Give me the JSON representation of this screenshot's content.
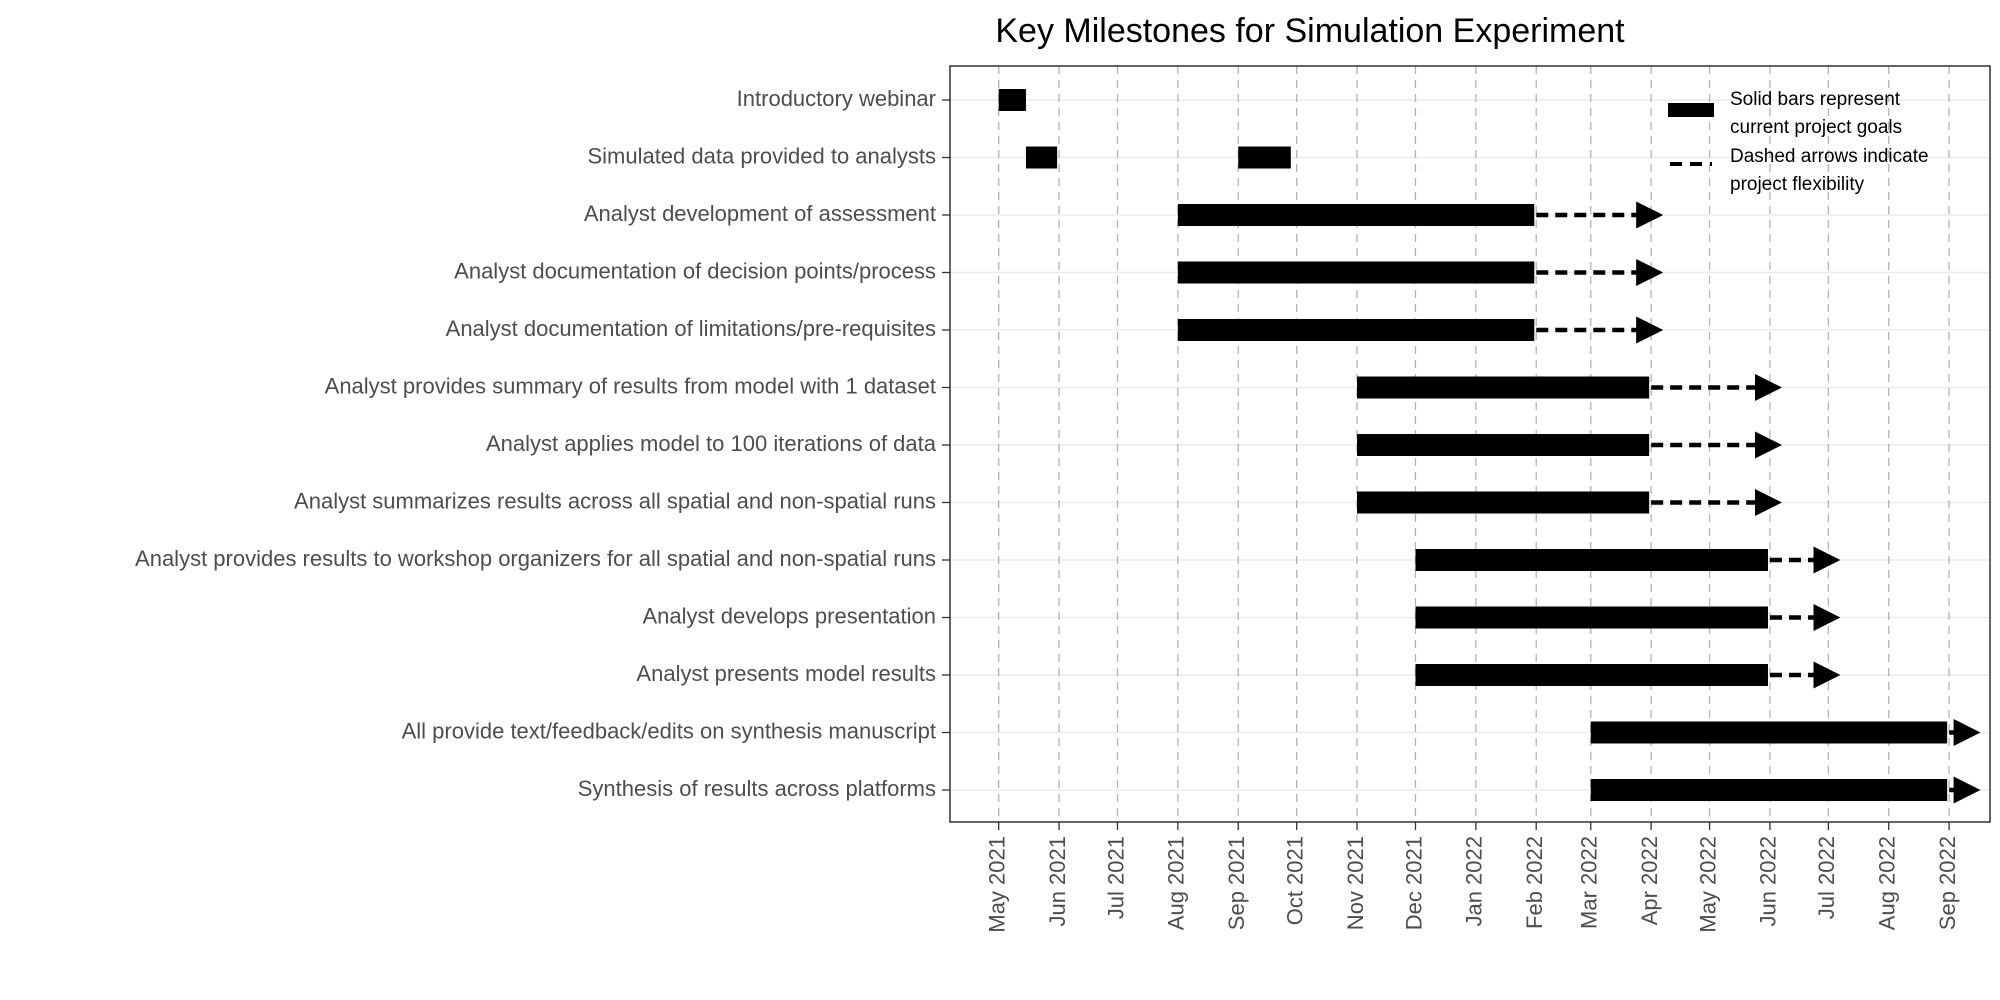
{
  "chart_data": {
    "type": "gantt",
    "title": "Key Milestones for Simulation Experiment",
    "xlabel": "",
    "ylabel": "",
    "x_axis": {
      "type": "date",
      "range": [
        "2021-04-06",
        "2022-09-22"
      ],
      "ticks": [
        "2021-05-01",
        "2021-06-01",
        "2021-07-01",
        "2021-08-01",
        "2021-09-01",
        "2021-10-01",
        "2021-11-01",
        "2021-12-01",
        "2022-01-01",
        "2022-02-01",
        "2022-03-01",
        "2022-04-01",
        "2022-05-01",
        "2022-06-01",
        "2022-07-01",
        "2022-08-01",
        "2022-09-01"
      ],
      "tick_labels": [
        "May 2021",
        "Jun 2021",
        "Jul 2021",
        "Aug 2021",
        "Sep 2021",
        "Oct 2021",
        "Nov 2021",
        "Dec 2021",
        "Jan 2022",
        "Feb 2022",
        "Mar 2022",
        "Apr 2022",
        "May 2022",
        "Jun 2022",
        "Jul 2022",
        "Aug 2022",
        "Sep 2022"
      ],
      "tick_label_rotation": "vertical"
    },
    "grid": {
      "vertical": "dashed",
      "horizontal": "solid-light"
    },
    "legend": {
      "placement": "top-right",
      "entries": [
        {
          "symbol": "solid-bar",
          "label": "Solid bars represent current project goals"
        },
        {
          "symbol": "dashed-arrow",
          "label": "Dashed arrows indicate project flexibility"
        }
      ]
    },
    "series": [
      {
        "task": "Introductory webinar",
        "segments": [
          {
            "start": "2021-05-01",
            "end": "2021-05-15"
          }
        ],
        "flex_end": null
      },
      {
        "task": "Simulated data provided to analysts",
        "segments": [
          {
            "start": "2021-05-15",
            "end": "2021-05-31"
          },
          {
            "start": "2021-09-01",
            "end": "2021-09-28"
          }
        ],
        "flex_end": null
      },
      {
        "task": "Analyst development of assessment",
        "segments": [
          {
            "start": "2021-08-01",
            "end": "2022-01-31"
          }
        ],
        "flex_end": "2022-04-10"
      },
      {
        "task": "Analyst documentation of decision points/process",
        "segments": [
          {
            "start": "2021-08-01",
            "end": "2022-01-31"
          }
        ],
        "flex_end": "2022-04-10"
      },
      {
        "task": "Analyst documentation of limitations/pre-requisites",
        "segments": [
          {
            "start": "2021-08-01",
            "end": "2022-01-31"
          }
        ],
        "flex_end": "2022-04-10"
      },
      {
        "task": "Analyst provides summary of results from model with 1 dataset",
        "segments": [
          {
            "start": "2021-11-01",
            "end": "2022-03-31"
          }
        ],
        "flex_end": "2022-06-10"
      },
      {
        "task": "Analyst applies model to 100 iterations of data",
        "segments": [
          {
            "start": "2021-11-01",
            "end": "2022-03-31"
          }
        ],
        "flex_end": "2022-06-10"
      },
      {
        "task": "Analyst summarizes results across all spatial and non-spatial runs",
        "segments": [
          {
            "start": "2021-11-01",
            "end": "2022-03-31"
          }
        ],
        "flex_end": "2022-06-10"
      },
      {
        "task": "Analyst provides results to workshop organizers for all spatial and non-spatial runs",
        "segments": [
          {
            "start": "2021-12-01",
            "end": "2022-05-31"
          }
        ],
        "flex_end": "2022-07-10"
      },
      {
        "task": "Analyst develops presentation",
        "segments": [
          {
            "start": "2021-12-01",
            "end": "2022-05-31"
          }
        ],
        "flex_end": "2022-07-10"
      },
      {
        "task": "Analyst presents model results",
        "segments": [
          {
            "start": "2021-12-01",
            "end": "2022-05-31"
          }
        ],
        "flex_end": "2022-07-10"
      },
      {
        "task": "All provide text/feedback/edits on synthesis manuscript",
        "segments": [
          {
            "start": "2022-03-01",
            "end": "2022-08-31"
          }
        ],
        "flex_end": "2022-09-20"
      },
      {
        "task": "Synthesis of results across platforms",
        "segments": [
          {
            "start": "2022-03-01",
            "end": "2022-08-31"
          }
        ],
        "flex_end": "2022-09-20"
      }
    ]
  }
}
